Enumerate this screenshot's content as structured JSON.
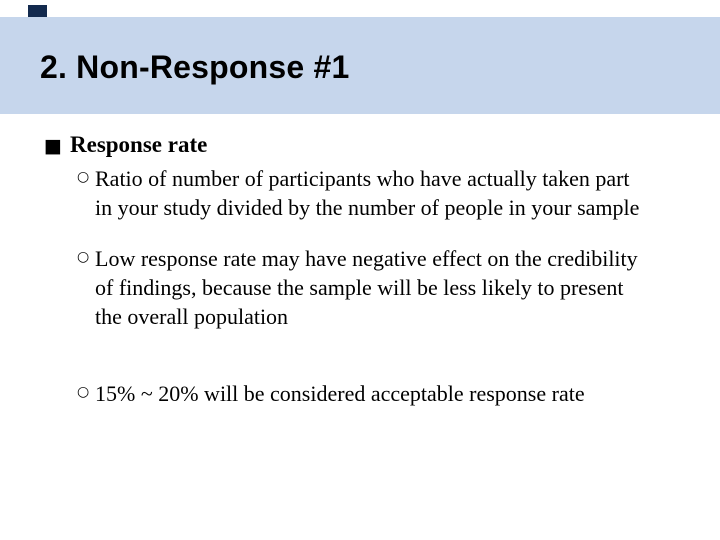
{
  "slide": {
    "colors": {
      "band": "#c6d6ec",
      "accent_bar": "#132a4e",
      "title_text": "#000000",
      "body_text": "#000000",
      "background": "#ffffff"
    },
    "title": "2. Non-Response #1",
    "markers": {
      "level1": "■",
      "level2": "○"
    },
    "heading": "Response rate",
    "sub_bullets": [
      {
        "lines": [
          "Ratio of number of participants who have actually taken part",
          "in your study divided by the number of people in your sample"
        ]
      },
      {
        "lines": [
          "Low response rate may have negative effect on the credibility",
          "of findings, because the sample will be less likely to present",
          "the overall population"
        ]
      },
      {
        "lines": [
          "15% ~ 20% will be considered acceptable response rate"
        ]
      }
    ]
  }
}
